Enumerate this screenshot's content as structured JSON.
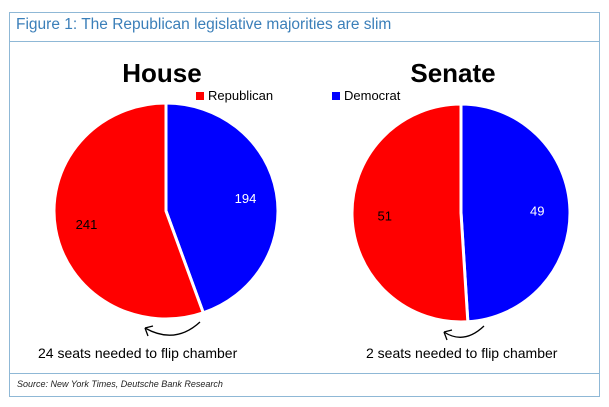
{
  "figure_title": "Figure 1: The Republican legislative majorities are slim",
  "source": "Source: New York Times, Deutsche Bank Research",
  "colors": {
    "republican": "#ff0000",
    "democrat": "#0000ff",
    "accent": "#3b7fb9"
  },
  "chart_data": [
    {
      "type": "pie",
      "title": "House",
      "categories": [
        "Republican",
        "Democrat"
      ],
      "values": [
        241,
        194
      ],
      "colors": [
        "#ff0000",
        "#0000ff"
      ],
      "legend_entry": "Republican",
      "annotation": "24 seats needed to flip chamber"
    },
    {
      "type": "pie",
      "title": "Senate",
      "categories": [
        "Republican",
        "Democrat"
      ],
      "values": [
        51,
        49
      ],
      "colors": [
        "#ff0000",
        "#0000ff"
      ],
      "legend_entry": "Democrat",
      "annotation": "2 seats needed to flip chamber"
    }
  ]
}
